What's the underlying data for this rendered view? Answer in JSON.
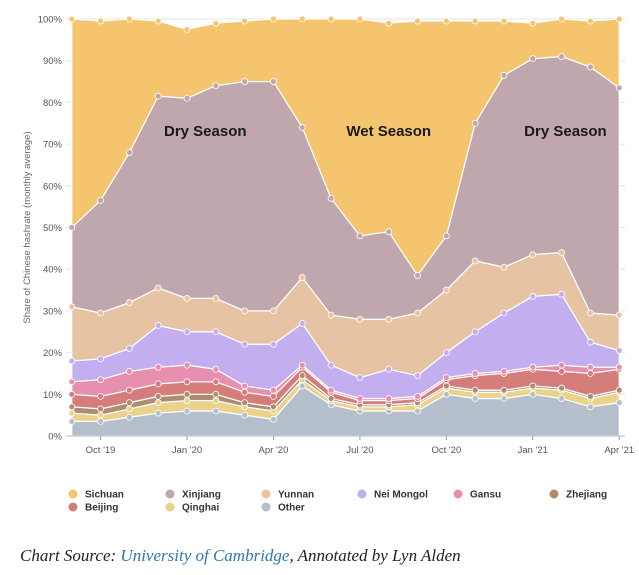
{
  "chart_data": {
    "type": "area",
    "stacked": true,
    "ylabel": "Share of Chinese hashrate (monthly average)",
    "ylim": [
      0,
      100
    ],
    "y_ticks": [
      "0%",
      "10%",
      "20%",
      "30%",
      "40%",
      "50%",
      "60%",
      "70%",
      "80%",
      "90%",
      "100%"
    ],
    "x_ticks": [
      "Oct '19",
      "Jan '20",
      "Apr '20",
      "Jul '20",
      "Oct '20",
      "Jan '21",
      "Apr '21"
    ],
    "x_start": "2019-09",
    "x_end": "2021-04",
    "months": [
      "2019-09",
      "2019-10",
      "2019-11",
      "2019-12",
      "2020-01",
      "2020-02",
      "2020-03",
      "2020-04",
      "2020-05",
      "2020-06",
      "2020-07",
      "2020-08",
      "2020-09",
      "2020-10",
      "2020-11",
      "2020-12",
      "2021-01",
      "2021-02",
      "2021-03",
      "2021-04"
    ],
    "series": [
      {
        "name": "Other",
        "color": "#b5bfcb",
        "values": [
          3.5,
          3.5,
          4.5,
          5.5,
          6,
          6,
          5,
          4,
          12,
          7.5,
          6,
          6,
          6,
          10,
          9,
          9,
          10,
          9,
          7,
          8
        ]
      },
      {
        "name": "Qinghai",
        "color": "#ead28b",
        "values": [
          2,
          1.5,
          2,
          2.5,
          2.5,
          2.5,
          2,
          2,
          1.5,
          1,
          1,
          1,
          1.5,
          1.5,
          1.5,
          1.5,
          1.5,
          2,
          2,
          2.5
        ]
      },
      {
        "name": "Zhejiang",
        "color": "#ad8c72",
        "values": [
          1.5,
          1.5,
          1.5,
          1.5,
          1.5,
          1.5,
          1,
          1,
          1,
          0.5,
          0.5,
          0.5,
          0.5,
          0.5,
          0.5,
          0.5,
          0.5,
          0.5,
          0.5,
          0.5
        ]
      },
      {
        "name": "Beijing",
        "color": "#d57d7b",
        "values": [
          3,
          3,
          3,
          3,
          3,
          3,
          2.5,
          2.5,
          2,
          1.5,
          1,
          1,
          1,
          1.5,
          3.5,
          4,
          4,
          4,
          5.5,
          5
        ]
      },
      {
        "name": "Gansu",
        "color": "#e78fae",
        "values": [
          3,
          4,
          4.5,
          4,
          4,
          3,
          1.5,
          1.5,
          0.5,
          0.5,
          0.5,
          0.5,
          0.5,
          0.5,
          0.5,
          0.5,
          0.5,
          1.5,
          1.5,
          0.5
        ]
      },
      {
        "name": "Nei Mongol",
        "color": "#c3aff0",
        "values": [
          5,
          5,
          5.5,
          10,
          8,
          9,
          10,
          11,
          10,
          6,
          5,
          7,
          5,
          6,
          10,
          14,
          17,
          17,
          6,
          4
        ]
      },
      {
        "name": "Yunnan",
        "color": "#e6c3a2",
        "values": [
          13,
          11,
          11,
          9,
          8,
          8,
          8,
          8,
          11,
          12,
          14,
          12,
          15,
          15,
          17,
          11,
          10,
          10,
          7,
          8.5
        ]
      },
      {
        "name": "Xinjiang",
        "color": "#c0a6ad",
        "values": [
          19,
          27,
          36,
          46,
          48,
          51,
          55,
          55,
          36,
          28,
          20,
          21,
          9,
          13,
          33,
          46,
          47,
          47,
          59,
          54.5
        ]
      },
      {
        "name": "Sichuan",
        "color": "#f5c46f",
        "values": [
          50,
          43,
          32,
          18,
          16.5,
          15,
          14.5,
          15,
          26,
          43,
          52,
          50,
          61,
          51.5,
          24.5,
          13,
          8.5,
          9,
          11,
          16.5
        ]
      }
    ],
    "annotations": [
      {
        "text": "Dry Season",
        "x": "2020-01-20",
        "y": 72
      },
      {
        "text": "Wet Season",
        "x": "2020-08-01",
        "y": 72
      },
      {
        "text": "Dry Season",
        "x": "2021-02-05",
        "y": 72
      }
    ],
    "legend": {
      "position": "bottom",
      "items": [
        "Sichuan",
        "Xinjiang",
        "Yunnan",
        "Nei Mongol",
        "Gansu",
        "Zhejiang",
        "Beijing",
        "Qinghai",
        "Other"
      ]
    },
    "grid": true
  },
  "caption": {
    "prefix": "Chart Source: ",
    "link_text": "University of Cambridge",
    "suffix": ", Annotated by Lyn Alden"
  }
}
